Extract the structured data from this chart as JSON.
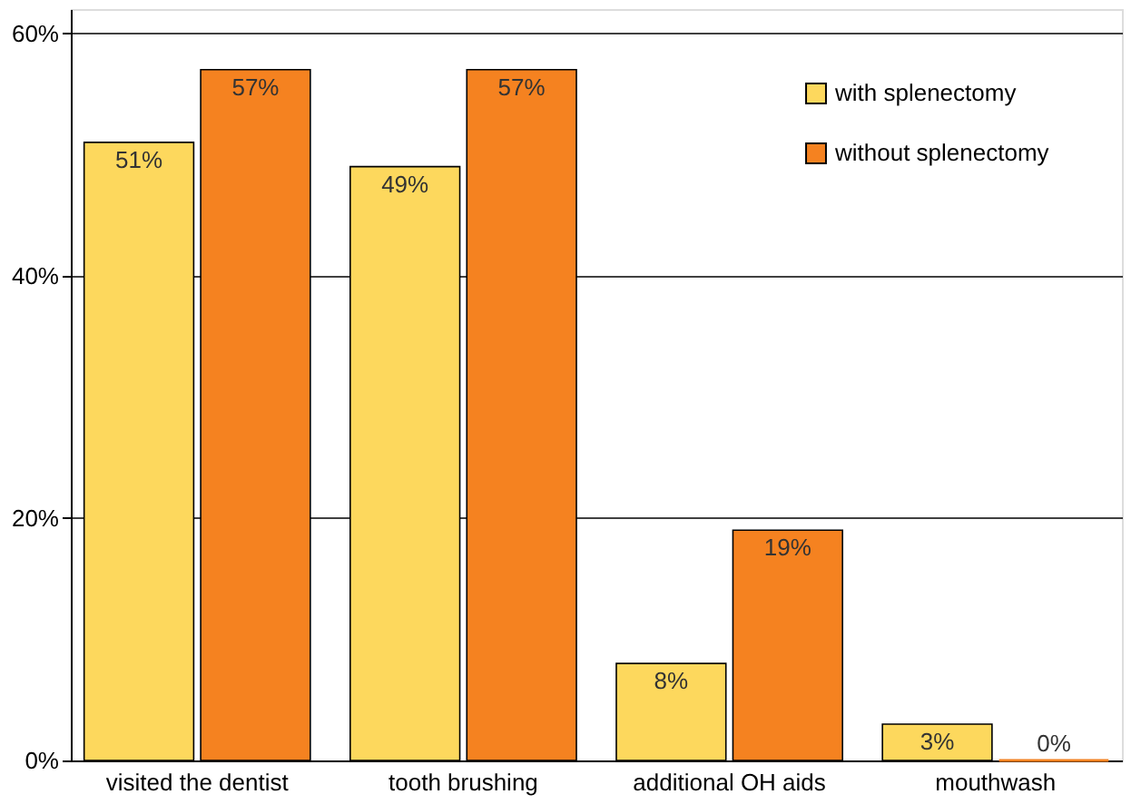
{
  "chart_data": {
    "type": "bar",
    "categories": [
      "visited the dentist",
      "tooth brushing",
      "additional OH aids",
      "mouthwash"
    ],
    "series": [
      {
        "name": "with splenectomy",
        "color": "#fdd85d",
        "values": [
          51,
          49,
          8,
          3
        ],
        "value_labels": [
          "51%",
          "49%",
          "8%",
          "3%"
        ]
      },
      {
        "name": "without splenectomy",
        "color": "#f58220",
        "values": [
          57,
          57,
          19,
          0
        ],
        "value_labels": [
          "57%",
          "57%",
          "19%",
          "0%"
        ]
      }
    ],
    "ylim": [
      0,
      62
    ],
    "yticks": [
      {
        "value": 0,
        "label": "0%"
      },
      {
        "value": 20,
        "label": "20%"
      },
      {
        "value": 40,
        "label": "40%"
      },
      {
        "value": 60,
        "label": "60%"
      }
    ],
    "grid": "y",
    "legend": "top right"
  }
}
